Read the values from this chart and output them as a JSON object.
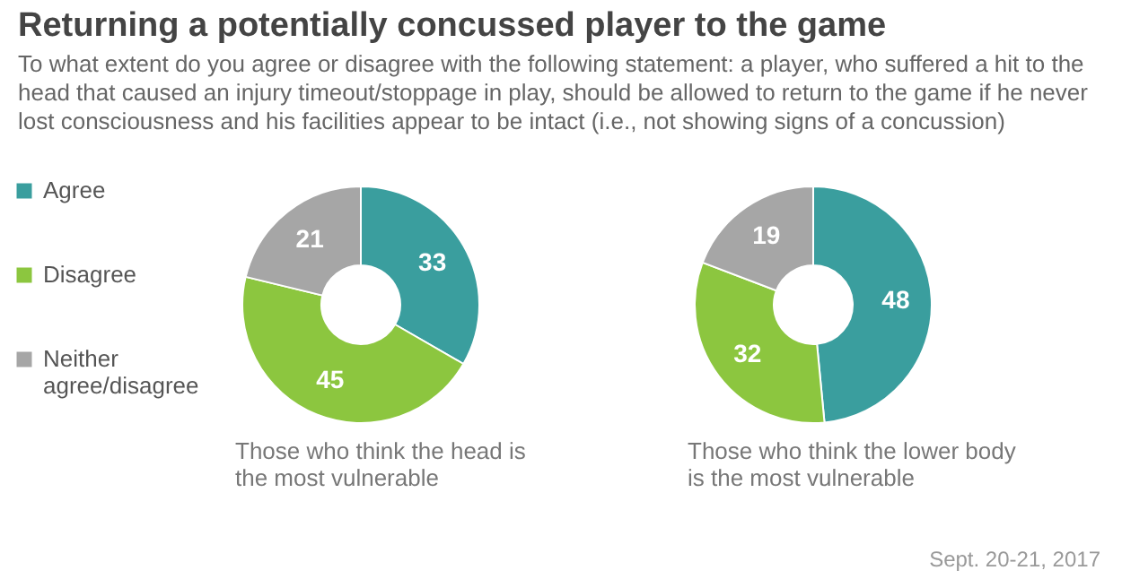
{
  "chart_data": {
    "type": "donut",
    "title": "Returning a potentially concussed player to the game",
    "subtitle": "To what extent do you agree or disagree with the following statement: a player, who suffered a hit to the head that caused an injury timeout/stoppage in play, should be allowed to return to the game if he never lost consciousness and his facilities appear to be intact (i.e., not showing signs of a concussion)",
    "categories": [
      "Agree",
      "Disagree",
      "Neither agree/disagree"
    ],
    "colors": [
      "#3a9e9e",
      "#8cc63f",
      "#a6a6a6"
    ],
    "data_labels": true,
    "legend": "left",
    "series": [
      {
        "name": "Those who think the head is the most vulnerable",
        "values": [
          33,
          45,
          21
        ]
      },
      {
        "name": "Those who think the lower body is the most vulnerable",
        "values": [
          48,
          32,
          19
        ]
      }
    ],
    "annotations": [
      "Sept. 20-21, 2017"
    ]
  }
}
